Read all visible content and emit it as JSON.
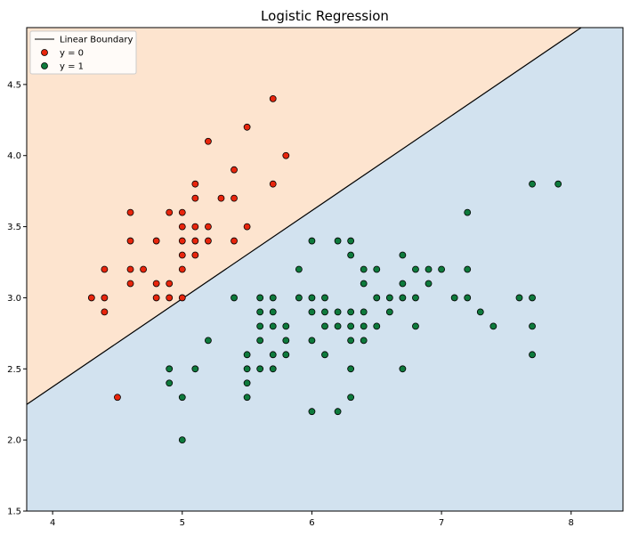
{
  "chart_data": {
    "type": "scatter",
    "title": "Logistic Regression",
    "xlabel": "",
    "ylabel": "",
    "xlim": [
      3.8,
      8.4
    ],
    "ylim": [
      1.5,
      4.9
    ],
    "x_ticks": [
      4,
      5,
      6,
      7,
      8
    ],
    "y_ticks": [
      1.5,
      2.0,
      2.5,
      3.0,
      3.5,
      4.0,
      4.5
    ],
    "grid": false,
    "legend_location": "top-left",
    "region_colors": {
      "class_0": "#fde4cf",
      "class_1": "#d2e2ef"
    },
    "boundary": {
      "name": "Linear Boundary",
      "color": "#000000",
      "x": [
        3.8,
        8.4
      ],
      "y": [
        2.25,
        5.1
      ]
    },
    "series": [
      {
        "name": "y = 0",
        "color": "#e8250c",
        "points": [
          [
            4.3,
            3.0
          ],
          [
            4.4,
            3.2
          ],
          [
            4.4,
            3.0
          ],
          [
            4.4,
            2.9
          ],
          [
            4.5,
            2.3
          ],
          [
            4.6,
            3.6
          ],
          [
            4.6,
            3.4
          ],
          [
            4.6,
            3.2
          ],
          [
            4.6,
            3.1
          ],
          [
            4.7,
            3.2
          ],
          [
            4.8,
            3.4
          ],
          [
            4.8,
            3.1
          ],
          [
            4.8,
            3.0
          ],
          [
            4.9,
            3.6
          ],
          [
            4.9,
            3.1
          ],
          [
            4.9,
            3.0
          ],
          [
            5.0,
            3.6
          ],
          [
            5.0,
            3.5
          ],
          [
            5.0,
            3.4
          ],
          [
            5.0,
            3.3
          ],
          [
            5.0,
            3.2
          ],
          [
            5.0,
            3.0
          ],
          [
            5.1,
            3.8
          ],
          [
            5.1,
            3.7
          ],
          [
            5.1,
            3.5
          ],
          [
            5.1,
            3.4
          ],
          [
            5.1,
            3.3
          ],
          [
            5.2,
            4.1
          ],
          [
            5.2,
            3.5
          ],
          [
            5.2,
            3.4
          ],
          [
            5.3,
            3.7
          ],
          [
            5.4,
            3.9
          ],
          [
            5.4,
            3.7
          ],
          [
            5.4,
            3.4
          ],
          [
            5.5,
            4.2
          ],
          [
            5.5,
            3.5
          ],
          [
            5.7,
            4.4
          ],
          [
            5.7,
            3.8
          ],
          [
            5.8,
            4.0
          ]
        ]
      },
      {
        "name": "y = 1",
        "color": "#0e7a3c",
        "points": [
          [
            4.9,
            2.5
          ],
          [
            4.9,
            2.4
          ],
          [
            5.0,
            2.3
          ],
          [
            5.0,
            2.0
          ],
          [
            5.1,
            2.5
          ],
          [
            5.2,
            2.7
          ],
          [
            5.4,
            3.0
          ],
          [
            5.5,
            2.6
          ],
          [
            5.5,
            2.5
          ],
          [
            5.5,
            2.4
          ],
          [
            5.5,
            2.3
          ],
          [
            5.6,
            3.0
          ],
          [
            5.6,
            2.9
          ],
          [
            5.6,
            2.8
          ],
          [
            5.6,
            2.7
          ],
          [
            5.6,
            2.5
          ],
          [
            5.7,
            3.0
          ],
          [
            5.7,
            2.9
          ],
          [
            5.7,
            2.8
          ],
          [
            5.7,
            2.6
          ],
          [
            5.7,
            2.5
          ],
          [
            5.8,
            2.8
          ],
          [
            5.8,
            2.7
          ],
          [
            5.8,
            2.6
          ],
          [
            5.9,
            3.2
          ],
          [
            5.9,
            3.0
          ],
          [
            6.0,
            3.4
          ],
          [
            6.0,
            3.0
          ],
          [
            6.0,
            2.9
          ],
          [
            6.0,
            2.7
          ],
          [
            6.0,
            2.2
          ],
          [
            6.1,
            3.0
          ],
          [
            6.1,
            2.9
          ],
          [
            6.1,
            2.8
          ],
          [
            6.1,
            2.6
          ],
          [
            6.2,
            3.4
          ],
          [
            6.2,
            2.9
          ],
          [
            6.2,
            2.8
          ],
          [
            6.2,
            2.2
          ],
          [
            6.3,
            3.4
          ],
          [
            6.3,
            3.3
          ],
          [
            6.3,
            2.9
          ],
          [
            6.3,
            2.8
          ],
          [
            6.3,
            2.7
          ],
          [
            6.3,
            2.5
          ],
          [
            6.3,
            2.3
          ],
          [
            6.4,
            3.2
          ],
          [
            6.4,
            3.1
          ],
          [
            6.4,
            2.9
          ],
          [
            6.4,
            2.8
          ],
          [
            6.4,
            2.7
          ],
          [
            6.5,
            3.2
          ],
          [
            6.5,
            3.0
          ],
          [
            6.5,
            2.8
          ],
          [
            6.6,
            3.0
          ],
          [
            6.6,
            2.9
          ],
          [
            6.7,
            3.3
          ],
          [
            6.7,
            3.1
          ],
          [
            6.7,
            3.0
          ],
          [
            6.7,
            2.5
          ],
          [
            6.8,
            3.2
          ],
          [
            6.8,
            3.0
          ],
          [
            6.8,
            2.8
          ],
          [
            6.9,
            3.2
          ],
          [
            6.9,
            3.1
          ],
          [
            7.0,
            3.2
          ],
          [
            7.1,
            3.0
          ],
          [
            7.2,
            3.6
          ],
          [
            7.2,
            3.2
          ],
          [
            7.2,
            3.0
          ],
          [
            7.3,
            2.9
          ],
          [
            7.4,
            2.8
          ],
          [
            7.6,
            3.0
          ],
          [
            7.7,
            3.8
          ],
          [
            7.7,
            3.0
          ],
          [
            7.7,
            2.8
          ],
          [
            7.7,
            2.6
          ],
          [
            7.9,
            3.8
          ]
        ]
      }
    ]
  }
}
